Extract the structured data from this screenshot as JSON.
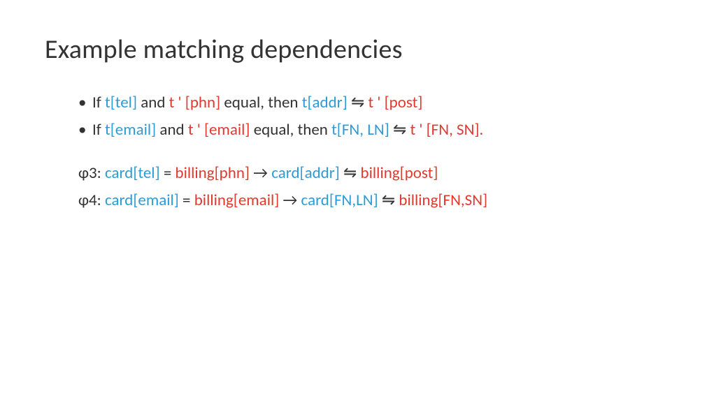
{
  "colors": {
    "background": "#ffffff",
    "text_default": "#333333",
    "text_blue": "#2e9bd6",
    "text_red": "#e03a2f"
  },
  "typography": {
    "title_fontsize_pt": 29,
    "body_fontsize_pt": 17,
    "font_family": "Calibri"
  },
  "title": "Example matching dependencies",
  "bullets": [
    {
      "runs": [
        {
          "text": "If ",
          "cls": "tblk"
        },
        {
          "text": "t[tel] ",
          "cls": "tblue"
        },
        {
          "text": "and ",
          "cls": "tblk"
        },
        {
          "text": "t ' [phn] ",
          "cls": "tred"
        },
        {
          "text": "equal, then ",
          "cls": "tblk"
        },
        {
          "text": "t[addr] ",
          "cls": "tblue"
        },
        {
          "text": "⇋ ",
          "cls": "tblk"
        },
        {
          "text": "t ' [post]",
          "cls": "tred"
        }
      ]
    },
    {
      "runs": [
        {
          "text": "If ",
          "cls": "tblk"
        },
        {
          "text": "t[email] ",
          "cls": "tblue"
        },
        {
          "text": "and ",
          "cls": "tblk"
        },
        {
          "text": "t ' [email] ",
          "cls": "tred"
        },
        {
          "text": "equal, then ",
          "cls": "tblk"
        },
        {
          "text": "t[FN, LN] ",
          "cls": "tblue"
        },
        {
          "text": "⇋ ",
          "cls": "tblk"
        },
        {
          "text": "t ' [FN, SN].",
          "cls": "tred"
        }
      ]
    }
  ],
  "paras": [
    {
      "runs": [
        {
          "text": "φ3: ",
          "cls": "tblk"
        },
        {
          "text": "card[tel] ",
          "cls": "tblue"
        },
        {
          "text": "= ",
          "cls": "tblk"
        },
        {
          "text": "billing[phn] ",
          "cls": "tred"
        },
        {
          "text": "→ ",
          "cls": "tblk"
        },
        {
          "text": "card[addr] ",
          "cls": "tblue"
        },
        {
          "text": "⇋ ",
          "cls": "tblk"
        },
        {
          "text": "billing[post]",
          "cls": "tred"
        }
      ]
    },
    {
      "runs": [
        {
          "text": "φ4: ",
          "cls": "tblk"
        },
        {
          "text": "card[email] ",
          "cls": "tblue"
        },
        {
          "text": "= ",
          "cls": "tblk"
        },
        {
          "text": "billing[email] ",
          "cls": "tred"
        },
        {
          "text": "→ ",
          "cls": "tblk"
        },
        {
          "text": "card[FN,LN] ",
          "cls": "tblue"
        },
        {
          "text": "⇋ ",
          "cls": "tblk"
        },
        {
          "text": "billing[FN,SN]",
          "cls": "tred"
        }
      ]
    }
  ]
}
